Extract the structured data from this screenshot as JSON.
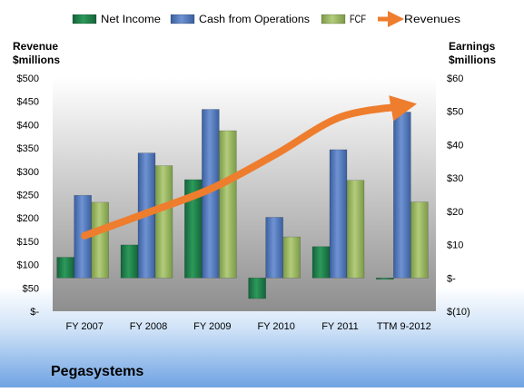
{
  "chart_data": {
    "type": "bar",
    "title": "Pegasystems",
    "categories": [
      "FY 2007",
      "FY 2008",
      "FY 2009",
      "FY 2010",
      "FY 2011",
      "TTM 9-2012"
    ],
    "y_left": {
      "label_line1": "Revenue",
      "label_line2": "$millions",
      "range": [
        0,
        500
      ],
      "ticks": [
        0,
        50,
        100,
        150,
        200,
        250,
        300,
        350,
        400,
        450,
        500
      ],
      "tick_labels": [
        "$-",
        "$50",
        "$100",
        "$150",
        "$200",
        "$250",
        "$300",
        "$350",
        "$400",
        "$450",
        "$500"
      ]
    },
    "y_right": {
      "label_line1": "Earnings",
      "label_line2": "$millions",
      "range": [
        -10,
        60
      ],
      "ticks": [
        -10,
        0,
        10,
        20,
        30,
        40,
        50,
        60
      ],
      "tick_labels": [
        "$(10)",
        "$-",
        "$10",
        "$20",
        "$30",
        "$40",
        "$50",
        "$60"
      ]
    },
    "series": [
      {
        "name": "Net Income",
        "axis": "right",
        "color": "#1f7a45",
        "values": [
          6.2,
          9.9,
          29.5,
          -6.2,
          9.4,
          -0.4
        ]
      },
      {
        "name": "Cash from Operations",
        "axis": "right",
        "color": "#4a72b8",
        "values": [
          24.8,
          37.5,
          50.6,
          18.2,
          38.5,
          49.8
        ]
      },
      {
        "name": "FCF",
        "axis": "right",
        "color": "#93b35a",
        "values": [
          22.7,
          33.7,
          44.2,
          12.3,
          29.3,
          22.8
        ]
      },
      {
        "name": "Revenues",
        "axis": "left",
        "color": "#ee7d2e",
        "type": "arrow",
        "values": [
          162,
          212,
          264,
          337,
          416,
          440
        ]
      }
    ],
    "legend_position": "top",
    "grid": false
  }
}
